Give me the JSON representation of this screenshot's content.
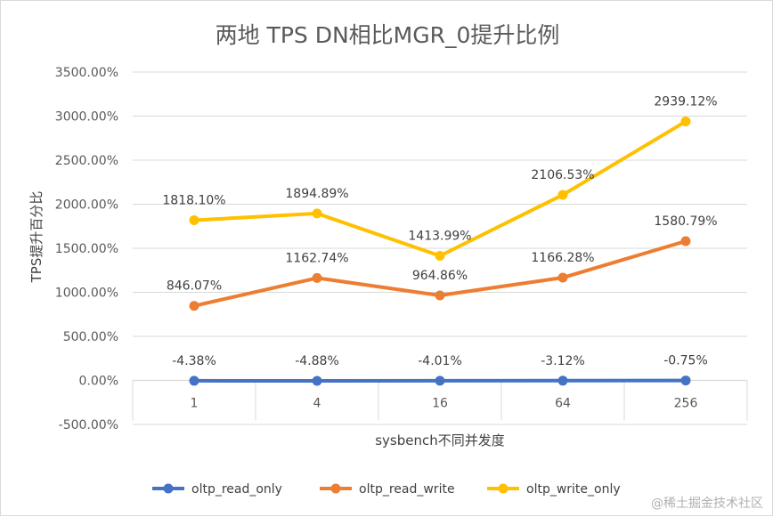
{
  "watermark": "@稀土掘金技术社区",
  "chart_data": {
    "type": "line",
    "title": "两地 TPS DN相比MGR_0提升比例",
    "xlabel": "sysbench不同并发度",
    "ylabel": "TPS提升百分比",
    "categories": [
      "1",
      "4",
      "16",
      "64",
      "256"
    ],
    "ylim": [
      -500,
      3500
    ],
    "ytick_step": 500,
    "ytick_labels": [
      "-500.00%",
      "0.00%",
      "500.00%",
      "1000.00%",
      "1500.00%",
      "2000.00%",
      "2500.00%",
      "3000.00%",
      "3500.00%"
    ],
    "grid": true,
    "legend": "bottom",
    "series": [
      {
        "name": "oltp_read_only",
        "color": "#4472C4",
        "values": [
          -4.38,
          -4.88,
          -4.01,
          -3.12,
          -0.75
        ],
        "labels": [
          "-4.38%",
          "-4.88%",
          "-4.01%",
          "-3.12%",
          "-0.75%"
        ]
      },
      {
        "name": "oltp_read_write",
        "color": "#ED7D31",
        "values": [
          846.07,
          1162.74,
          964.86,
          1166.28,
          1580.79
        ],
        "labels": [
          "846.07%",
          "1162.74%",
          "964.86%",
          "1166.28%",
          "1580.79%"
        ]
      },
      {
        "name": "oltp_write_only",
        "color": "#FFC000",
        "values": [
          1818.1,
          1894.89,
          1413.99,
          2106.53,
          2939.12
        ],
        "labels": [
          "1818.10%",
          "1894.89%",
          "1413.99%",
          "2106.53%",
          "2939.12%"
        ]
      }
    ]
  }
}
